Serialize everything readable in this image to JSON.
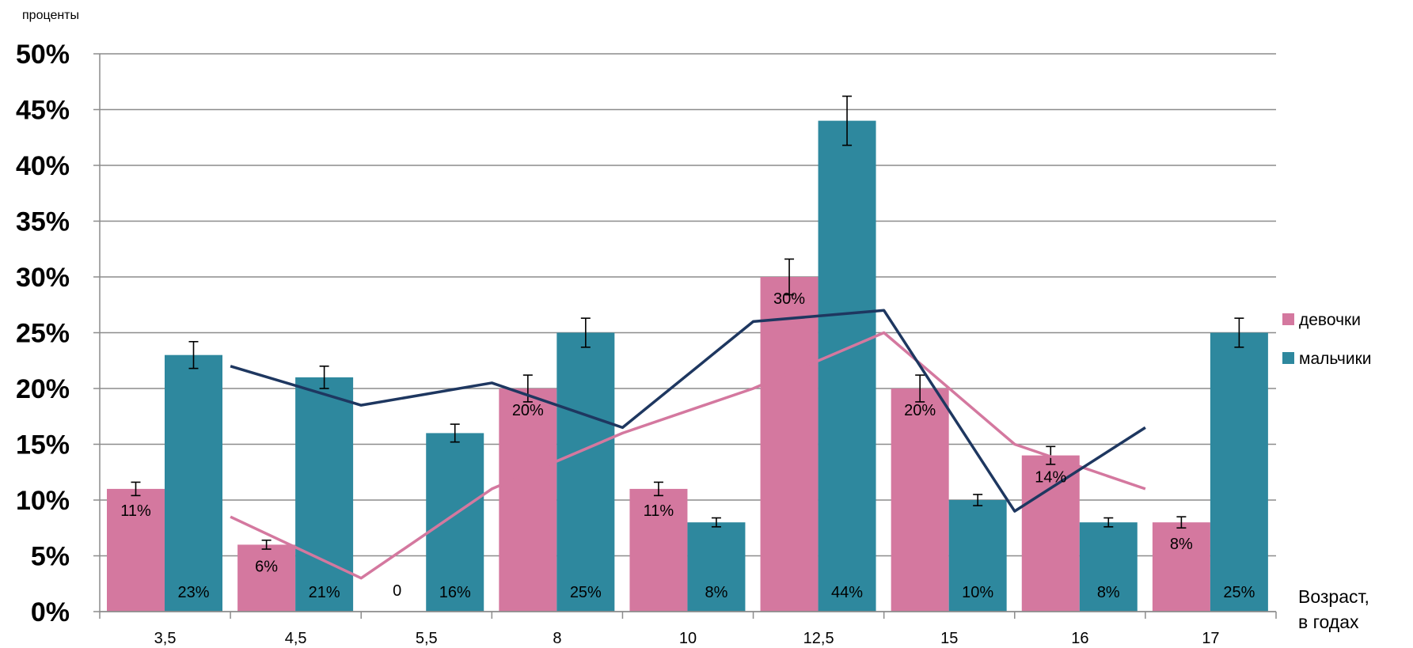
{
  "chart_data": {
    "type": "bar",
    "categories": [
      "3,5",
      "4,5",
      "5,5",
      "8",
      "10",
      "12,5",
      "15",
      "16",
      "17"
    ],
    "ylabel": "проценты",
    "xlabel_lines": [
      "Возраст,",
      "в годах"
    ],
    "ylim": [
      0,
      50
    ],
    "yticks": [
      0,
      5,
      10,
      15,
      20,
      25,
      30,
      35,
      40,
      45,
      50
    ],
    "ytick_format": "{v}%",
    "grid": true,
    "legend_position": "right",
    "series": [
      {
        "name": "девочки",
        "color": "#d4789f",
        "values": [
          11,
          6,
          0,
          20,
          11,
          30,
          20,
          14,
          8
        ],
        "labels": [
          "11%",
          "6%",
          "0",
          "20%",
          "11%",
          "30%",
          "20%",
          "14%",
          "8%"
        ],
        "error": [
          0.6,
          0.4,
          0,
          1.2,
          0.6,
          1.6,
          1.2,
          0.8,
          0.5
        ],
        "trend": [
          8.5,
          3,
          11,
          16,
          20,
          25,
          15,
          11
        ],
        "trend_color": "#d4789f"
      },
      {
        "name": "мальчики",
        "color": "#2e889e",
        "values": [
          23,
          21,
          16,
          25,
          8,
          44,
          10,
          8,
          25
        ],
        "labels": [
          "23%",
          "21%",
          "16%",
          "25%",
          "8%",
          "44%",
          "10%",
          "8%",
          "25%"
        ],
        "error": [
          1.2,
          1.0,
          0.8,
          1.3,
          0.4,
          2.2,
          0.5,
          0.4,
          1.3
        ],
        "trend": [
          22,
          18.5,
          20.5,
          16.5,
          26,
          27,
          9,
          16.5
        ],
        "trend_color": "#1e3760"
      }
    ]
  }
}
